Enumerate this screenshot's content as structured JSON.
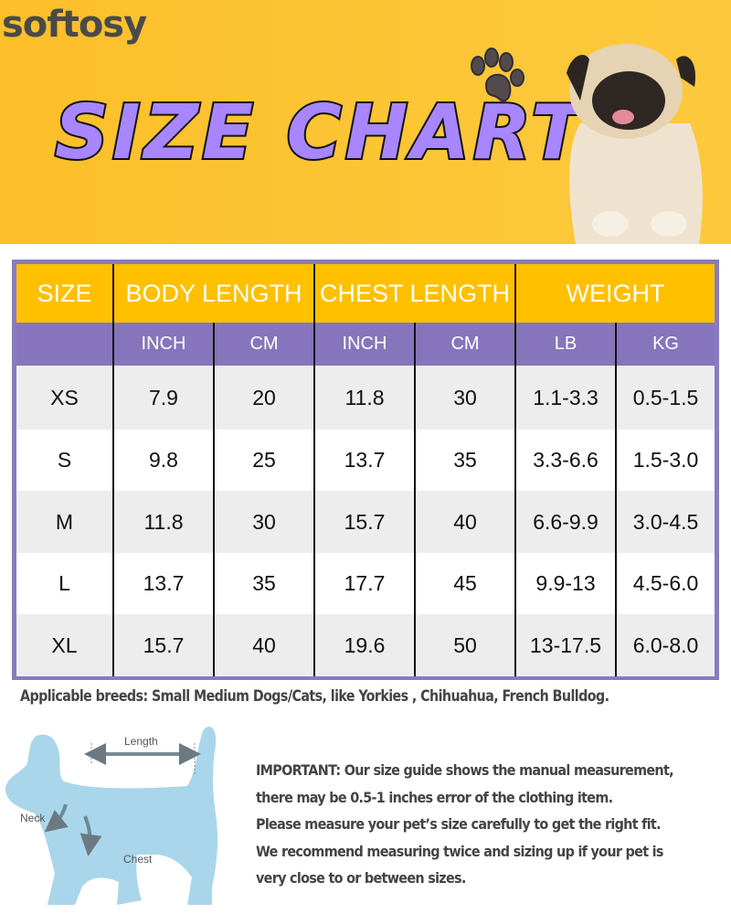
{
  "brand": {
    "logo": "softosy"
  },
  "banner": {
    "title": "SIZE CHART",
    "icons": [
      "paw-icon",
      "pug-photo"
    ],
    "background_color": "#FDC12E",
    "title_color": "#A886FF"
  },
  "table": {
    "header_color": "#FFC000",
    "subheader_color": "#8675BC",
    "groups": [
      "SIZE",
      "BODY LENGTH",
      "CHEST LENGTH",
      "WEIGHT"
    ],
    "units": [
      "INCH",
      "CM",
      "INCH",
      "CM",
      "LB",
      "KG"
    ],
    "rows": [
      [
        "XS",
        "7.9",
        "20",
        "11.8",
        "30",
        "1.1-3.3",
        "0.5-1.5"
      ],
      [
        "S",
        "9.8",
        "25",
        "13.7",
        "35",
        "3.3-6.6",
        "1.5-3.0"
      ],
      [
        "M",
        "11.8",
        "30",
        "15.7",
        "40",
        "6.6-9.9",
        "3.0-4.5"
      ],
      [
        "L",
        "13.7",
        "35",
        "17.7",
        "45",
        "9.9-13",
        "4.5-6.0"
      ],
      [
        "XL",
        "15.7",
        "40",
        "19.6",
        "50",
        "13-17.5",
        "6.0-8.0"
      ]
    ]
  },
  "breeds": "Applicable breeds: Small Medium Dogs/Cats, like Yorkies , Chihuahua, French Bulldog.",
  "diagram": {
    "labels": {
      "length": "Length",
      "neck": "Neck",
      "chest": "Chest"
    }
  },
  "note": [
    "IMPORTANT: Our size guide shows the manual measurement,",
    "there may be 0.5-1 inches error of the clothing item.",
    "Please measure your pet’s size carefully to get the right fit.",
    "We recommend measuring twice and sizing up if your pet is",
    "very close to or between sizes."
  ]
}
